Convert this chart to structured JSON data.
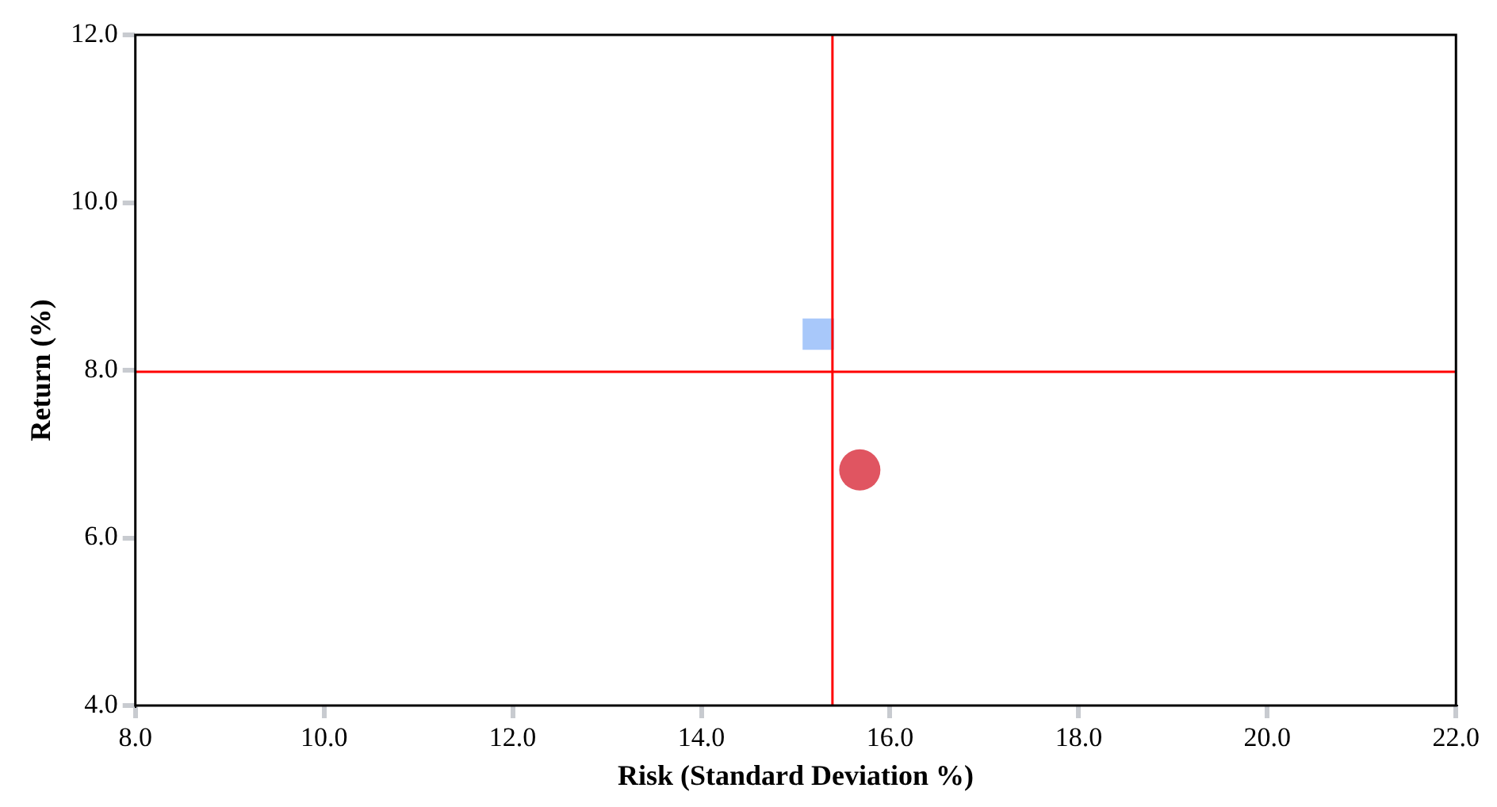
{
  "chart_data": {
    "type": "scatter",
    "xlabel": "Risk (Standard Deviation %)",
    "ylabel": "Return (%)",
    "series": [
      {
        "color": "#a8c8fa",
        "x": [
          15.24
        ],
        "values": [
          8.43
        ],
        "marker": "square"
      },
      {
        "color": "#e05561",
        "x": [
          15.68
        ],
        "values": [
          6.81
        ],
        "marker": "circle"
      }
    ],
    "xlim": [
      8,
      22
    ],
    "xticks": [
      {
        "value": 8,
        "label": "8.0"
      },
      {
        "value": 10,
        "label": "10.0"
      },
      {
        "value": 12,
        "label": "12.0"
      },
      {
        "value": 14,
        "label": "14.0"
      },
      {
        "value": 16,
        "label": "16.0"
      },
      {
        "value": 18,
        "label": "18.0"
      },
      {
        "value": 20,
        "label": "20.0"
      },
      {
        "value": 22,
        "label": "22.0"
      }
    ],
    "ylim": [
      4,
      12
    ],
    "yticks": [
      {
        "value": 4,
        "label": "4.0"
      },
      {
        "value": 6,
        "label": "6.0"
      },
      {
        "value": 8,
        "label": "8.0"
      },
      {
        "value": 10,
        "label": "10.0"
      },
      {
        "value": 12,
        "label": "12.0"
      }
    ],
    "ref_lines": [
      {
        "axis": "x",
        "value": 15.39,
        "color": "#ff0000"
      },
      {
        "axis": "y",
        "value": 7.98,
        "color": "#ff0000"
      }
    ],
    "grid": false,
    "legend": false
  }
}
